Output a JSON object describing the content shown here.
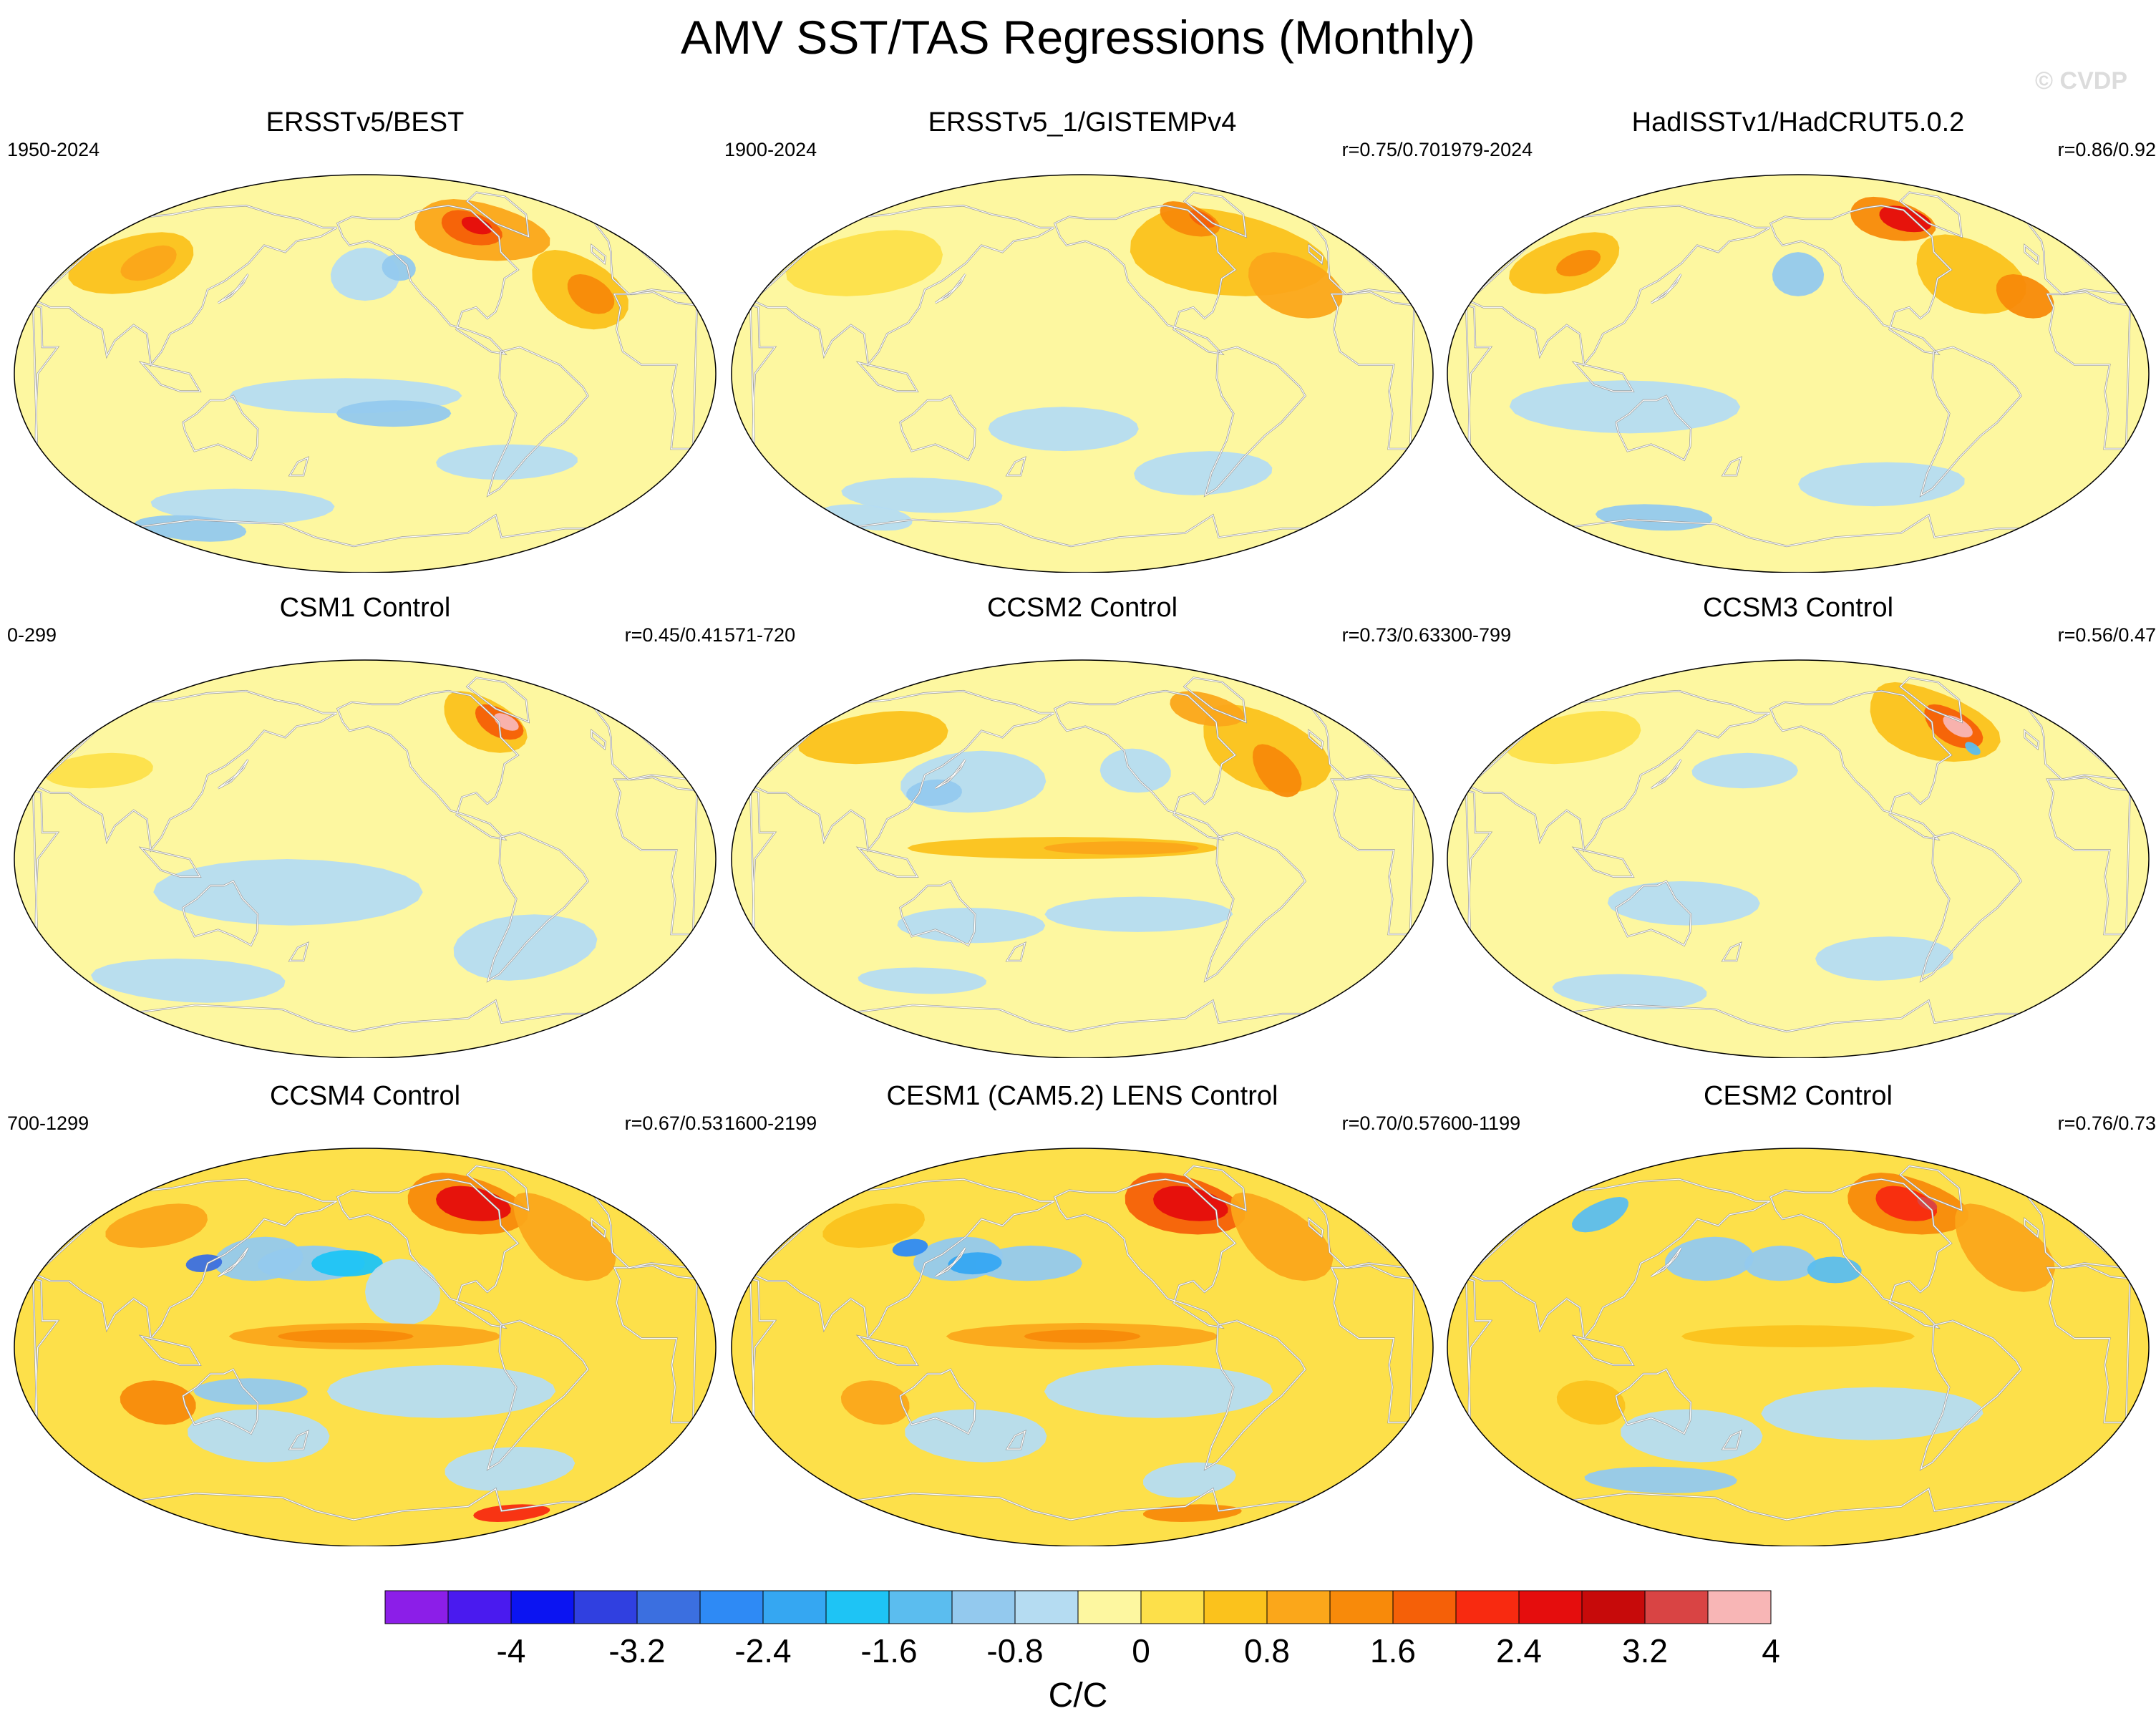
{
  "title": "AMV SST/TAS Regressions (Monthly)",
  "watermark": "© CVDP",
  "panels": [
    {
      "title": "ERSSTv5/BEST",
      "period": "1950-2024",
      "corr": "",
      "map": "obs1"
    },
    {
      "title": "ERSSTv5_1/GISTEMPv4",
      "period": "1900-2024",
      "corr": "r=0.75/0.70",
      "map": "obs2"
    },
    {
      "title": "HadISSTv1/HadCRUT5.0.2",
      "period": "1979-2024",
      "corr": "r=0.86/0.92",
      "map": "obs3"
    },
    {
      "title": "CSM1 Control",
      "period": "0-299",
      "corr": "r=0.45/0.41",
      "map": "csm1"
    },
    {
      "title": "CCSM2 Control",
      "period": "571-720",
      "corr": "r=0.73/0.63",
      "map": "ccsm2"
    },
    {
      "title": "CCSM3 Control",
      "period": "300-799",
      "corr": "r=0.56/0.47",
      "map": "ccsm3"
    },
    {
      "title": "CCSM4 Control",
      "period": "700-1299",
      "corr": "r=0.67/0.53",
      "map": "ccsm4"
    },
    {
      "title": "CESM1 (CAM5.2) LENS Control",
      "period": "1600-2199",
      "corr": "r=0.70/0.57",
      "map": "cesm1"
    },
    {
      "title": "CESM2 Control",
      "period": "600-1199",
      "corr": "r=0.76/0.73",
      "map": "cesm2"
    }
  ],
  "colorbar": {
    "colors": [
      "#8c1ee8",
      "#4a1aef",
      "#0b14f2",
      "#3040e0",
      "#3b6fe0",
      "#2e8af5",
      "#35a7f2",
      "#1ec4f5",
      "#5bbdef",
      "#93c9ee",
      "#b5dcf2",
      "#fdf7a0",
      "#fde04a",
      "#fbc21c",
      "#fba71a",
      "#f88a0a",
      "#f56008",
      "#f82a10",
      "#e50d0d",
      "#c70a0a",
      "#d94444",
      "#f8b6b6"
    ],
    "tick_labels": [
      "-4",
      "-3.2",
      "-2.4",
      "-1.6",
      "-0.8",
      "0",
      "0.8",
      "1.6",
      "2.4",
      "3.2",
      "4"
    ],
    "units": "C/C"
  }
}
